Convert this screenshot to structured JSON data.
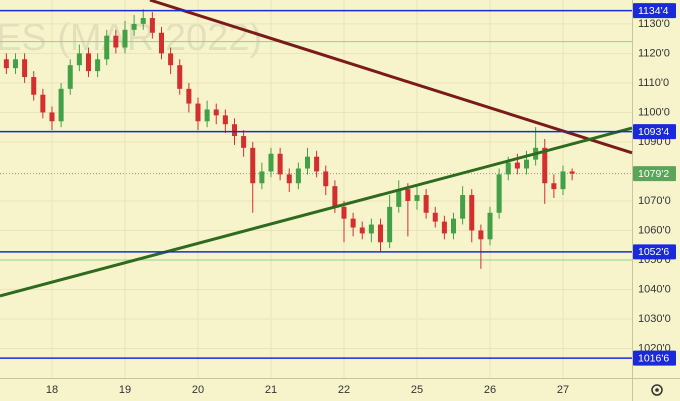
{
  "chart_data": {
    "type": "candlestick",
    "watermark": "ES (MAR 2022)",
    "x": [
      -0.625,
      -0.5,
      -0.375,
      -0.25,
      -0.125,
      0,
      0.125,
      0.25,
      0.375,
      0.5,
      0.625,
      0.75,
      0.875,
      1,
      1.125,
      1.25,
      1.375,
      1.5,
      1.625,
      1.75,
      1.875,
      2,
      2.125,
      2.25,
      2.375,
      2.5,
      2.625,
      2.75,
      2.875,
      3,
      3.125,
      3.25,
      3.375,
      3.5,
      3.625,
      3.75,
      3.875,
      4,
      4.125,
      4.25,
      4.375,
      4.5,
      4.625,
      4.75,
      4.875,
      5,
      5.125,
      5.25,
      5.375,
      5.5,
      5.625,
      5.75,
      5.875,
      6,
      6.125,
      6.25,
      6.375,
      6.5,
      6.625,
      6.75,
      6.875,
      7,
      7.125
    ],
    "open": [
      1118,
      1115,
      1118,
      1112,
      1106,
      1100,
      1097,
      1108,
      1116,
      1120,
      1114,
      1118,
      1126,
      1122,
      1128,
      1130,
      1132,
      1127,
      1120,
      1116,
      1108,
      1103,
      1097,
      1101,
      1099,
      1096,
      1092,
      1088,
      1076,
      1080,
      1086,
      1079,
      1076,
      1081,
      1085,
      1080,
      1075,
      1068,
      1064,
      1061,
      1059,
      1062,
      1056,
      1068,
      1074,
      1070,
      1072,
      1066,
      1063,
      1059,
      1064,
      1072,
      1060,
      1057,
      1066,
      1079,
      1083,
      1081,
      1084,
      1088,
      1076,
      1074,
      1080
    ],
    "high": [
      1120,
      1120,
      1120,
      1114,
      1108,
      1102,
      1110,
      1118,
      1123,
      1122,
      1120,
      1128,
      1128,
      1131,
      1133,
      1135,
      1134,
      1129,
      1122,
      1118,
      1110,
      1105,
      1104,
      1103,
      1101,
      1098,
      1094,
      1090,
      1083,
      1088,
      1088,
      1081,
      1083,
      1088,
      1087,
      1082,
      1077,
      1070,
      1066,
      1063,
      1064,
      1064,
      1072,
      1077,
      1076,
      1075,
      1074,
      1068,
      1065,
      1066,
      1075,
      1074,
      1062,
      1068,
      1081,
      1085,
      1086,
      1087,
      1095,
      1091,
      1079,
      1082,
      1081
    ],
    "low": [
      1113,
      1113,
      1110,
      1104,
      1098,
      1094,
      1095,
      1106,
      1114,
      1112,
      1112,
      1116,
      1120,
      1120,
      1126,
      1128,
      1125,
      1118,
      1113,
      1106,
      1100,
      1094,
      1095,
      1096,
      1093,
      1089,
      1085,
      1066,
      1074,
      1078,
      1077,
      1073,
      1074,
      1079,
      1078,
      1072,
      1066,
      1056,
      1058,
      1057,
      1056,
      1053,
      1054,
      1066,
      1058,
      1067,
      1064,
      1061,
      1057,
      1057,
      1062,
      1056,
      1047,
      1055,
      1064,
      1077,
      1079,
      1079,
      1082,
      1069,
      1071,
      1072,
      1077
    ],
    "close": [
      1115,
      1118,
      1112,
      1106,
      1100,
      1097,
      1108,
      1116,
      1120,
      1114,
      1118,
      1126,
      1122,
      1128,
      1130,
      1132,
      1127,
      1120,
      1116,
      1108,
      1103,
      1097,
      1101,
      1099,
      1096,
      1092,
      1088,
      1076,
      1080,
      1086,
      1079,
      1076,
      1081,
      1085,
      1080,
      1075,
      1068,
      1064,
      1061,
      1059,
      1062,
      1056,
      1068,
      1074,
      1070,
      1072,
      1066,
      1063,
      1059,
      1064,
      1072,
      1060,
      1057,
      1066,
      1079,
      1083,
      1081,
      1084,
      1088,
      1076,
      1074,
      1080,
      1079.25
    ],
    "up_color": "#43a047",
    "down_color": "#d32f2f",
    "xlim": [
      -0.712,
      7.945
    ],
    "xticks": [
      {
        "value": 0,
        "label": "18"
      },
      {
        "value": 1,
        "label": "19"
      },
      {
        "value": 2,
        "label": "20"
      },
      {
        "value": 3,
        "label": "21"
      },
      {
        "value": 4,
        "label": "22"
      },
      {
        "value": 5,
        "label": "25"
      },
      {
        "value": 6,
        "label": "26"
      },
      {
        "value": 7,
        "label": "27"
      }
    ],
    "ylim": [
      1010,
      1138.1
    ],
    "yticks": [
      {
        "value": 1020,
        "label": "1020'0"
      },
      {
        "value": 1030,
        "label": "1030'0"
      },
      {
        "value": 1040,
        "label": "1040'0"
      },
      {
        "value": 1050,
        "label": "1050'0"
      },
      {
        "value": 1060,
        "label": "1060'0"
      },
      {
        "value": 1070,
        "label": "1070'0"
      },
      {
        "value": 1090,
        "label": "1090'0"
      },
      {
        "value": 1100,
        "label": "1100'0"
      },
      {
        "value": 1110,
        "label": "1110'0"
      },
      {
        "value": 1120,
        "label": "1120'0"
      },
      {
        "value": 1130,
        "label": "1130'0"
      }
    ],
    "price_levels": [
      {
        "value": 1134.5,
        "label": "1134'4",
        "color": "#1a2ad8"
      },
      {
        "value": 1093.5,
        "label": "1093'4",
        "color": "#1a2ad8"
      },
      {
        "value": 1052.75,
        "label": "1052'6",
        "color": "#1a2ad8"
      },
      {
        "value": 1016.75,
        "label": "1016'6",
        "color": "#1a2ad8"
      }
    ],
    "current_price": {
      "value": 1079.25,
      "label": "1079'2",
      "color": "#5aa55a"
    },
    "support_levels": {
      "values": [
        1124,
        1050
      ],
      "color": "#8fd18f"
    },
    "trend_lines": [
      {
        "x": [
          1.342,
          7.945
        ],
        "y": [
          1138.1,
          1086.3
        ],
        "color": "#7b1a1a"
      },
      {
        "x": [
          -0.712,
          7.945
        ],
        "y": [
          1037.8,
          1094.7
        ],
        "color": "#2e6b1e"
      }
    ]
  }
}
